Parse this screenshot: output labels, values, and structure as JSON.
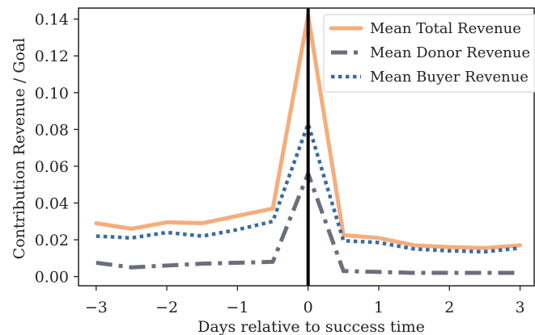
{
  "chart_data": {
    "type": "line",
    "xlabel": "Days relative to success time",
    "ylabel": "Contribution Revenue / Goal",
    "xlim": [
      -3.25,
      3.2
    ],
    "ylim": [
      -0.005,
      0.146
    ],
    "x_ticks": [
      -3,
      -2,
      -1,
      0,
      1,
      2,
      3
    ],
    "x_tick_labels": [
      "−3",
      "−2",
      "−1",
      "0",
      "1",
      "2",
      "3"
    ],
    "y_ticks": [
      0.0,
      0.02,
      0.04,
      0.06,
      0.08,
      0.1,
      0.12,
      0.14
    ],
    "y_tick_labels": [
      "0.00",
      "0.02",
      "0.04",
      "0.06",
      "0.08",
      "0.10",
      "0.12",
      "0.14"
    ],
    "grid": false,
    "legend_position": "top-right",
    "reference_line": {
      "x": 0,
      "color": "#000000"
    },
    "series": [
      {
        "name": "Mean Total Revenue",
        "style": "solid",
        "color": "#f5ad7c",
        "x": [
          -3,
          -2.5,
          -2,
          -1.5,
          -1,
          -0.5,
          0,
          0.5,
          1,
          1.5,
          2,
          2.5,
          3
        ],
        "y": [
          0.029,
          0.026,
          0.0295,
          0.029,
          0.033,
          0.037,
          0.142,
          0.0225,
          0.021,
          0.017,
          0.016,
          0.0155,
          0.017
        ]
      },
      {
        "name": "Mean Donor Revenue",
        "style": "dashdot",
        "color": "#6b6e7b",
        "x": [
          -3,
          -2.5,
          -2,
          -1.5,
          -1,
          -0.5,
          0,
          0.5,
          1,
          1.5,
          2,
          2.5,
          3
        ],
        "y": [
          0.0075,
          0.005,
          0.006,
          0.007,
          0.0075,
          0.008,
          0.056,
          0.003,
          0.0025,
          0.002,
          0.002,
          0.002,
          0.002
        ]
      },
      {
        "name": "Mean Buyer Revenue",
        "style": "dotted",
        "color": "#3a6aa0",
        "x": [
          -3,
          -2.5,
          -2,
          -1.5,
          -1,
          -0.5,
          0,
          0.5,
          1,
          1.5,
          2,
          2.5,
          3
        ],
        "y": [
          0.022,
          0.021,
          0.024,
          0.022,
          0.0255,
          0.03,
          0.083,
          0.0195,
          0.0185,
          0.015,
          0.014,
          0.0135,
          0.0155
        ]
      }
    ]
  }
}
